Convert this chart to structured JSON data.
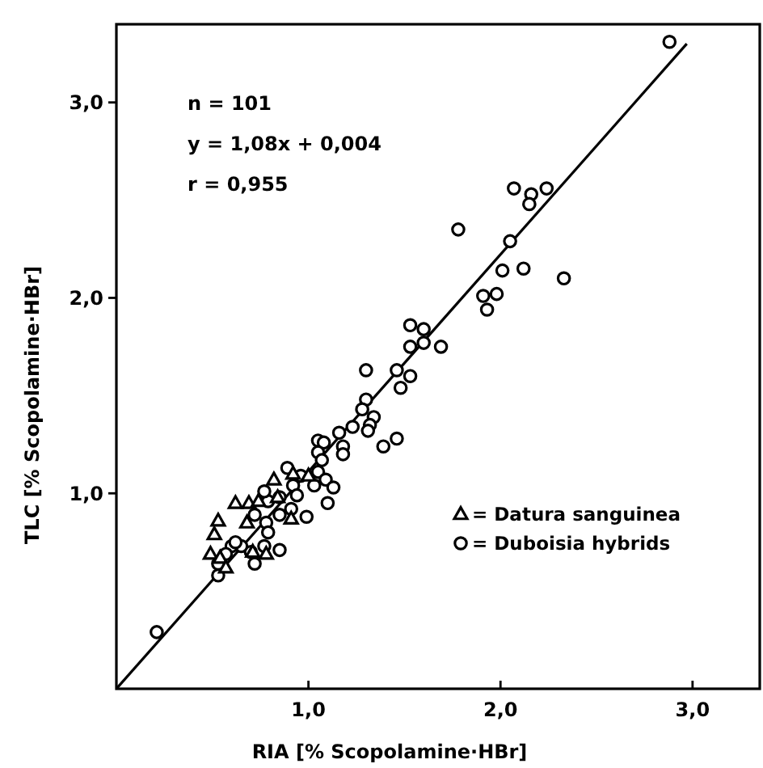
{
  "chart_data": {
    "type": "scatter",
    "xlabel": "RIA [% Scopolamine·HBr]",
    "ylabel": "TLC [% Scopolamine·HBr]",
    "xlim": [
      0,
      3.35
    ],
    "ylim": [
      0,
      3.4
    ],
    "xticks": [
      {
        "value": 1,
        "label": "1,0"
      },
      {
        "value": 2,
        "label": "2,0"
      },
      {
        "value": 3,
        "label": "3,0"
      }
    ],
    "yticks": [
      {
        "value": 1,
        "label": "1,0"
      },
      {
        "value": 2,
        "label": "2,0"
      },
      {
        "value": 3,
        "label": "3,0"
      }
    ],
    "annotations": [
      "n = 101",
      "y = 1,08x + 0,004",
      "r = 0,955"
    ],
    "legend": "right",
    "grid": false,
    "series": [
      {
        "name": "= Datura sanguinea",
        "marker": "triangle",
        "color": "#000000",
        "x": [
          0.62,
          0.69,
          0.53,
          0.51,
          0.49,
          0.54,
          0.68,
          0.71,
          0.78,
          0.82,
          0.91,
          0.92,
          0.84,
          0.57,
          0.74,
          1.0
        ],
        "values": [
          0.95,
          0.95,
          0.86,
          0.79,
          0.69,
          0.67,
          0.85,
          0.7,
          0.69,
          1.07,
          0.87,
          1.1,
          0.98,
          0.62,
          0.96,
          1.09
        ]
      },
      {
        "name": "= Duboisia hybrids",
        "marker": "circle",
        "color": "#000000",
        "x": [
          2.88,
          2.07,
          2.16,
          2.15,
          2.24,
          1.78,
          2.05,
          2.01,
          2.12,
          2.33,
          1.91,
          1.98,
          1.93,
          1.53,
          1.6,
          1.53,
          1.6,
          1.69,
          1.3,
          1.46,
          1.53,
          1.48,
          1.3,
          1.28,
          1.34,
          1.32,
          1.31,
          1.23,
          1.16,
          1.39,
          1.46,
          1.18,
          1.18,
          1.1,
          0.99,
          0.21,
          0.53,
          1.05,
          1.08,
          1.05,
          1.07,
          1.05,
          1.09,
          1.13,
          1.03,
          0.96,
          0.89,
          0.92,
          0.85,
          0.79,
          0.77,
          0.85,
          0.78,
          0.72,
          0.85,
          0.77,
          0.72,
          0.7,
          0.65,
          0.6,
          0.57,
          0.53,
          0.62,
          0.79,
          0.91,
          0.94
        ],
        "values": [
          3.31,
          2.56,
          2.53,
          2.48,
          2.56,
          2.35,
          2.29,
          2.14,
          2.15,
          2.1,
          2.01,
          2.02,
          1.94,
          1.86,
          1.84,
          1.75,
          1.77,
          1.75,
          1.63,
          1.63,
          1.6,
          1.54,
          1.48,
          1.43,
          1.39,
          1.35,
          1.32,
          1.34,
          1.31,
          1.24,
          1.28,
          1.24,
          1.2,
          0.95,
          0.88,
          0.29,
          0.58,
          1.27,
          1.26,
          1.21,
          1.17,
          1.11,
          1.07,
          1.03,
          1.04,
          1.09,
          1.13,
          1.04,
          0.98,
          0.96,
          1.01,
          0.89,
          0.85,
          0.89,
          0.71,
          0.73,
          0.64,
          0.7,
          0.73,
          0.73,
          0.69,
          0.64,
          0.75,
          0.8,
          0.92,
          0.99
        ]
      },
      {
        "type": "line",
        "marker": "none",
        "line_style": "solid",
        "color": "#000000",
        "x": [
          0,
          2.97
        ],
        "values": [
          0,
          3.3
        ]
      }
    ]
  }
}
